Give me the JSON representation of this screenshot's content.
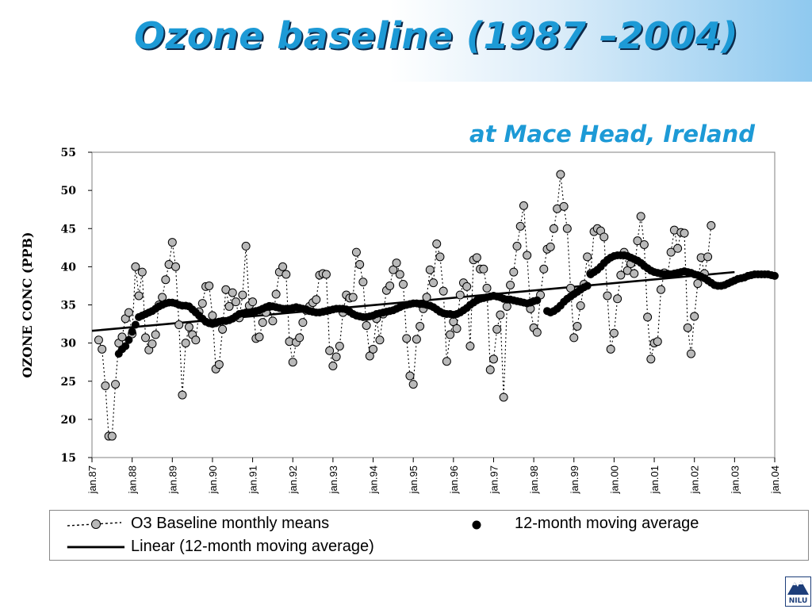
{
  "slide": {
    "title": "Ozone baseline (1987 –2004)",
    "subtitle": "at Mace Head, Ireland",
    "logo_text": "NILU"
  },
  "colors": {
    "title": "#1d9ad6",
    "title_shadow": "#0d2a4a",
    "marker_fill": "#b9b9b9",
    "moving_average": "#000000"
  },
  "chart_data": {
    "type": "line",
    "ylabel": "OZONE CONC (PPB)",
    "ylim": [
      15,
      55
    ],
    "yticks": [
      "55",
      "50",
      "45",
      "40",
      "35",
      "30",
      "25",
      "20",
      "15"
    ],
    "xlim": [
      "1987-01",
      "2004-01"
    ],
    "xticks": [
      "jan.87",
      "jan.88",
      "jan.89",
      "jan.90",
      "jan.91",
      "jan.92",
      "jan.93",
      "jan.94",
      "jan.95",
      "jan.96",
      "jan.97",
      "jan.98",
      "jan.99",
      "jan.00",
      "jan.01",
      "jan.02",
      "jan.03",
      "jan.04"
    ],
    "grid": false,
    "legend_position": "bottom",
    "series": [
      {
        "name": "O3 Baseline monthly means",
        "style": "dotted line with grey circle markers",
        "x_start": "1987-03",
        "values": [
          30.4,
          29.2,
          24.4,
          17.8,
          17.8,
          24.6,
          30.0,
          30.8,
          33.2,
          34.0,
          31.2,
          40.0,
          36.2,
          39.3,
          30.7,
          29.1,
          29.9,
          31.1,
          35.0,
          36.0,
          38.3,
          40.3,
          43.2,
          40.0,
          32.4,
          23.2,
          30.0,
          32.1,
          31.1,
          30.4,
          34.1,
          35.2,
          37.4,
          37.5,
          33.6,
          26.6,
          27.2,
          31.8,
          37.0,
          34.8,
          36.6,
          35.4,
          33.3,
          36.3,
          42.7,
          34.9,
          35.4,
          30.6,
          30.8,
          32.7,
          34.0,
          34.8,
          32.9,
          36.4,
          39.3,
          40.0,
          39.0,
          30.2,
          27.5,
          30.1,
          30.7,
          32.7,
          34.3,
          34.8,
          35.3,
          35.7,
          38.9,
          39.1,
          39.0,
          29.0,
          27.0,
          28.2,
          29.6,
          34.0,
          36.3,
          35.9,
          36.0,
          41.9,
          40.3,
          38.0,
          32.3,
          28.3,
          29.2,
          33.2,
          30.4,
          33.8,
          36.9,
          37.5,
          39.6,
          40.5,
          39.0,
          37.7,
          30.6,
          25.7,
          24.6,
          30.5,
          32.2,
          34.5,
          36.0,
          39.6,
          37.9,
          43.0,
          41.3,
          36.8,
          27.6,
          31.1,
          32.8,
          31.9,
          36.3,
          37.9,
          37.4,
          29.6,
          40.9,
          41.2,
          39.7,
          39.7,
          37.2,
          26.5,
          27.9,
          31.8,
          33.7,
          22.9,
          34.8,
          37.6,
          39.3,
          42.7,
          45.3,
          48.0,
          41.5,
          34.5,
          32.0,
          31.4,
          36.3,
          39.7,
          42.3,
          42.6,
          45.0,
          47.6,
          52.1,
          47.9,
          45.0,
          37.2,
          30.7,
          32.2,
          34.9,
          37.7,
          41.3,
          39.1,
          44.6,
          45.0,
          44.7,
          43.9,
          36.2,
          29.2,
          31.3,
          35.8,
          38.9,
          41.9,
          39.5,
          40.4,
          39.1,
          43.4,
          46.6,
          42.9,
          33.4,
          27.9,
          30.0,
          30.2,
          37.0,
          39.2,
          39.0,
          41.9,
          44.8,
          42.4,
          44.5,
          44.4,
          32.0,
          28.6,
          33.5,
          37.8,
          41.2,
          39.1,
          41.3,
          45.4
        ]
      },
      {
        "name": "12-month moving average",
        "style": "large black dots",
        "x_start": "1987-09",
        "values": [
          28.6,
          29.2,
          29.6,
          30.4,
          31.5,
          32.4,
          33.4,
          33.6,
          33.8,
          34.0,
          34.2,
          34.5,
          34.8,
          35.0,
          35.2,
          35.3,
          35.3,
          35.2,
          35.0,
          34.9,
          34.9,
          34.8,
          34.4,
          34.0,
          33.6,
          33.2,
          32.8,
          32.6,
          32.5,
          32.6,
          32.8,
          32.9,
          32.9,
          33.0,
          33.2,
          33.5,
          33.8,
          33.9,
          34.0,
          34.0,
          34.1,
          34.2,
          34.3,
          34.5,
          34.7,
          34.8,
          34.8,
          34.7,
          34.6,
          34.5,
          34.5,
          34.5,
          34.6,
          34.7,
          34.6,
          34.5,
          34.4,
          34.2,
          34.1,
          34.0,
          34.0,
          34.1,
          34.2,
          34.3,
          34.4,
          34.5,
          34.5,
          34.5,
          34.4,
          34.1,
          33.8,
          33.6,
          33.5,
          33.4,
          33.4,
          33.5,
          33.6,
          33.8,
          33.9,
          34.0,
          34.1,
          34.2,
          34.3,
          34.5,
          34.7,
          34.9,
          35.0,
          35.1,
          35.2,
          35.2,
          35.1,
          35.1,
          35.0,
          34.9,
          34.7,
          34.4,
          34.1,
          33.9,
          33.8,
          33.8,
          33.7,
          33.8,
          34.0,
          34.3,
          34.6,
          35.0,
          35.3,
          35.6,
          35.8,
          35.9,
          36.0,
          36.1,
          36.2,
          36.1,
          36.0,
          35.8,
          35.7,
          35.7,
          35.6,
          35.5,
          35.4,
          35.3,
          35.2,
          35.3,
          35.5,
          35.6,
          null,
          null,
          34.2,
          34.0,
          34.2,
          34.5,
          34.9,
          35.4,
          35.8,
          36.1,
          36.4,
          36.7,
          37.0,
          37.3,
          37.5,
          39.0,
          39.3,
          39.6,
          40.0,
          40.5,
          40.9,
          41.2,
          41.4,
          41.5,
          41.5,
          41.5,
          41.4,
          41.2,
          41.0,
          40.8,
          40.5,
          40.1,
          39.8,
          39.5,
          39.3,
          39.2,
          39.1,
          39.0,
          39.0,
          39.0,
          39.1,
          39.2,
          39.3,
          39.4,
          39.3,
          39.2,
          39.0,
          38.9,
          38.7,
          38.5,
          38.2,
          37.9,
          37.6,
          37.5,
          37.5,
          37.6,
          37.8,
          38.0,
          38.2,
          38.4,
          38.5,
          38.6,
          38.8,
          38.9,
          39.0,
          39.0,
          39.0,
          39.0,
          39.0,
          38.9,
          38.8
        ]
      },
      {
        "name": "Linear (12-month moving average)",
        "style": "solid black trend line",
        "x": [
          "1987-01",
          "2003-01"
        ],
        "values": [
          31.6,
          39.3
        ]
      }
    ]
  },
  "legend": {
    "items": [
      {
        "label": "O3 Baseline monthly means"
      },
      {
        "label": "12-month moving average"
      },
      {
        "label": "Linear (12-month moving average)"
      }
    ]
  }
}
